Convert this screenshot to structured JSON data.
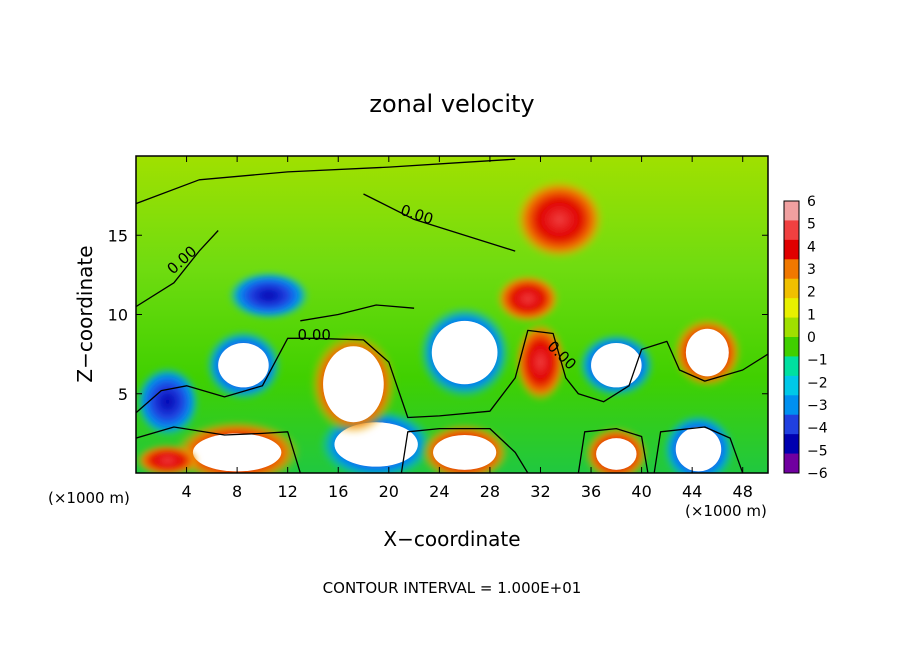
{
  "chart_data": {
    "type": "heatmap",
    "title": "zonal velocity",
    "xlabel": "X−coordinate",
    "ylabel": "Z−coordinate",
    "x_unit_left": "(×1000 m)",
    "x_unit_right": "(×1000 m)",
    "xlim": [
      0,
      50
    ],
    "ylim": [
      0,
      20
    ],
    "x_ticks": [
      4,
      8,
      12,
      16,
      20,
      24,
      28,
      32,
      36,
      40,
      44,
      48
    ],
    "x_tick_labels": [
      "4",
      "8",
      "12",
      "16",
      "20",
      "24",
      "28",
      "32",
      "36",
      "40",
      "44",
      "48"
    ],
    "y_ticks": [
      5,
      10,
      15
    ],
    "y_tick_labels": [
      "5",
      "10",
      "15"
    ],
    "contour_labels": [
      {
        "text": "0.00",
        "x": 22.1,
        "y": 16.0,
        "angle": 18
      },
      {
        "text": "0.00",
        "x": 3.9,
        "y": 13.2,
        "angle": -42
      },
      {
        "text": "0.00",
        "x": 14.1,
        "y": 8.4,
        "angle": 0
      },
      {
        "text": "0.00",
        "x": 33.4,
        "y": 7.2,
        "angle": 45
      }
    ],
    "colorbar": {
      "min": -6,
      "max": 6,
      "tick_labels": [
        "6",
        "5",
        "4",
        "3",
        "2",
        "1",
        "0",
        "−1",
        "−2",
        "−3",
        "−4",
        "−5",
        "−6"
      ],
      "colors": [
        "#f0a0a0",
        "#f04040",
        "#e00000",
        "#f07800",
        "#f0c000",
        "#e8f000",
        "#a0e000",
        "#40d000",
        "#00e0a0",
        "#00c8e8",
        "#0090f0",
        "#2040e0",
        "#0000b0",
        "#7000a0"
      ]
    },
    "features": [
      {
        "kind": "negative",
        "cx": 8.5,
        "cy": 6.8,
        "rx": 3.0,
        "ry": 2.2,
        "core_rx": 2.0,
        "core_ry": 1.4
      },
      {
        "kind": "negative",
        "cx": 26.0,
        "cy": 7.6,
        "rx": 3.6,
        "ry": 2.9,
        "core_rx": 2.6,
        "core_ry": 2.0
      },
      {
        "kind": "negative",
        "cx": 38.0,
        "cy": 6.8,
        "rx": 3.0,
        "ry": 2.0,
        "core_rx": 2.0,
        "core_ry": 1.4
      },
      {
        "kind": "negative",
        "cx": 10.5,
        "cy": 11.2,
        "rx": 3.2,
        "ry": 1.5,
        "core_rx": 0,
        "core_ry": 0
      },
      {
        "kind": "negative",
        "cx": 2.5,
        "cy": 4.5,
        "rx": 2.5,
        "ry": 2.2,
        "core_rx": 0,
        "core_ry": 0
      },
      {
        "kind": "negative",
        "cx": 19.0,
        "cy": 1.8,
        "rx": 4.5,
        "ry": 2.2,
        "core_rx": 3.3,
        "core_ry": 1.4
      },
      {
        "kind": "negative",
        "cx": 44.5,
        "cy": 1.5,
        "rx": 2.8,
        "ry": 2.2,
        "core_rx": 1.8,
        "core_ry": 1.4
      },
      {
        "kind": "positive",
        "cx": 17.2,
        "cy": 5.6,
        "rx": 3.4,
        "ry": 3.2,
        "core_rx": 2.4,
        "core_ry": 2.4
      },
      {
        "kind": "positive",
        "cx": 45.2,
        "cy": 7.6,
        "rx": 2.7,
        "ry": 2.2,
        "core_rx": 1.7,
        "core_ry": 1.5
      },
      {
        "kind": "positive",
        "cx": 8.0,
        "cy": 1.3,
        "rx": 5.0,
        "ry": 2.0,
        "core_rx": 3.5,
        "core_ry": 1.2
      },
      {
        "kind": "positive",
        "cx": 26.0,
        "cy": 1.3,
        "rx": 3.5,
        "ry": 1.8,
        "core_rx": 2.5,
        "core_ry": 1.1
      },
      {
        "kind": "positive",
        "cx": 38.0,
        "cy": 1.2,
        "rx": 2.5,
        "ry": 1.7,
        "core_rx": 1.6,
        "core_ry": 1.0
      },
      {
        "kind": "positive",
        "cx": 2.5,
        "cy": 0.8,
        "rx": 2.5,
        "ry": 1.0,
        "core_rx": 0,
        "core_ry": 0
      },
      {
        "kind": "positive",
        "cx": 32.0,
        "cy": 7.0,
        "rx": 2.0,
        "ry": 2.5,
        "core_rx": 0,
        "core_ry": 0
      },
      {
        "kind": "positive",
        "cx": 33.5,
        "cy": 16.0,
        "rx": 3.5,
        "ry": 2.5,
        "core_rx": 0,
        "core_ry": 0
      },
      {
        "kind": "positive",
        "cx": 31.0,
        "cy": 11.0,
        "rx": 2.5,
        "ry": 1.5,
        "core_rx": 0,
        "core_ry": 0
      }
    ],
    "zero_contours": [
      [
        [
          0,
          17.0
        ],
        [
          5,
          18.5
        ],
        [
          12,
          19.0
        ],
        [
          20,
          19.3
        ],
        [
          26,
          19.6
        ],
        [
          30,
          19.8
        ]
      ],
      [
        [
          18,
          17.6
        ],
        [
          22,
          16.0
        ],
        [
          26,
          15.0
        ],
        [
          30,
          14.0
        ]
      ],
      [
        [
          0,
          10.5
        ],
        [
          3,
          12.0
        ],
        [
          5,
          14.0
        ],
        [
          6.5,
          15.3
        ]
      ],
      [
        [
          13,
          9.6
        ],
        [
          16,
          10.0
        ],
        [
          19,
          10.6
        ],
        [
          22,
          10.4
        ]
      ],
      [
        [
          0,
          3.8
        ],
        [
          2,
          5.2
        ],
        [
          4,
          5.5
        ],
        [
          7,
          4.8
        ],
        [
          10,
          5.5
        ],
        [
          12,
          8.5
        ],
        [
          14,
          8.5
        ],
        [
          18,
          8.4
        ],
        [
          20,
          7.0
        ],
        [
          21.5,
          3.5
        ],
        [
          24,
          3.6
        ],
        [
          28,
          3.9
        ],
        [
          30,
          6.0
        ],
        [
          31,
          9.0
        ],
        [
          33,
          8.8
        ],
        [
          34,
          6.0
        ],
        [
          35,
          5.0
        ],
        [
          37,
          4.5
        ],
        [
          39,
          5.5
        ],
        [
          40,
          7.8
        ],
        [
          42,
          8.3
        ],
        [
          43,
          6.5
        ],
        [
          45,
          5.8
        ],
        [
          48,
          6.5
        ],
        [
          50,
          7.5
        ]
      ],
      [
        [
          0,
          2.2
        ],
        [
          3,
          2.9
        ],
        [
          7,
          2.4
        ],
        [
          10,
          2.5
        ],
        [
          12,
          2.6
        ],
        [
          13,
          0
        ]
      ],
      [
        [
          21,
          0
        ],
        [
          21.5,
          2.6
        ],
        [
          24,
          2.8
        ],
        [
          28,
          2.8
        ],
        [
          30,
          1.3
        ],
        [
          31,
          0
        ]
      ],
      [
        [
          35,
          0
        ],
        [
          35.5,
          2.6
        ],
        [
          38,
          2.8
        ],
        [
          40,
          2.3
        ],
        [
          40.5,
          0
        ]
      ],
      [
        [
          41,
          0
        ],
        [
          41.5,
          2.6
        ],
        [
          45,
          2.9
        ],
        [
          47,
          2.2
        ],
        [
          48,
          0
        ]
      ]
    ]
  },
  "footer": {
    "contour_interval": "CONTOUR INTERVAL = 1.000E+01"
  }
}
